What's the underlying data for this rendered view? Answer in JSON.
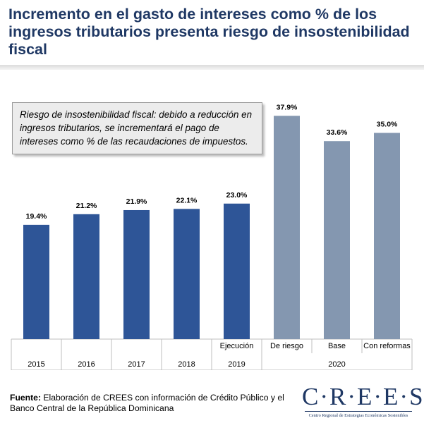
{
  "page": {
    "title": "Incremento en el gasto de intereses como % de los ingresos tributarios presenta riesgo de insostenibilidad fiscal",
    "callout": "Riesgo de insostenibilidad fiscal: debido a reducción en ingresos tributarios, se incrementará el pago de intereses como % de las recaudaciones de impuestos.",
    "footer_label": "Fuente:",
    "footer_text": " Elaboración de CREES con información de Crédito Público y el Banco Central de la República Dominicana",
    "logo_word": "C·R·E·E·S",
    "logo_sub": "Centro Regional de Estrategias Económicas Sostenibles"
  },
  "chart_data": {
    "type": "bar",
    "title": "Incremento en el gasto de intereses como % de los ingresos tributarios presenta riesgo de insostenibilidad fiscal",
    "xlabel": "",
    "ylabel": "",
    "categories": [
      "2015",
      "2016",
      "2017",
      "2018",
      "Ejecución",
      "De riesgo",
      "Base",
      "Con reformas"
    ],
    "group_labels": [
      "2015",
      "2016",
      "2017",
      "2018",
      "2019",
      "2020",
      "2020",
      "2020"
    ],
    "values": [
      19.4,
      21.2,
      21.9,
      22.1,
      23.0,
      37.9,
      33.6,
      35.0
    ],
    "data_labels": [
      "19.4%",
      "21.2%",
      "21.9%",
      "22.1%",
      "23.0%",
      "37.9%",
      "33.6%",
      "35.0%"
    ],
    "colors": [
      "#2e5597",
      "#2e5597",
      "#2e5597",
      "#2e5597",
      "#2e5597",
      "#8497b0",
      "#8497b0",
      "#8497b0"
    ],
    "ylim": [
      0,
      42
    ],
    "grid": false,
    "legend": "none"
  }
}
